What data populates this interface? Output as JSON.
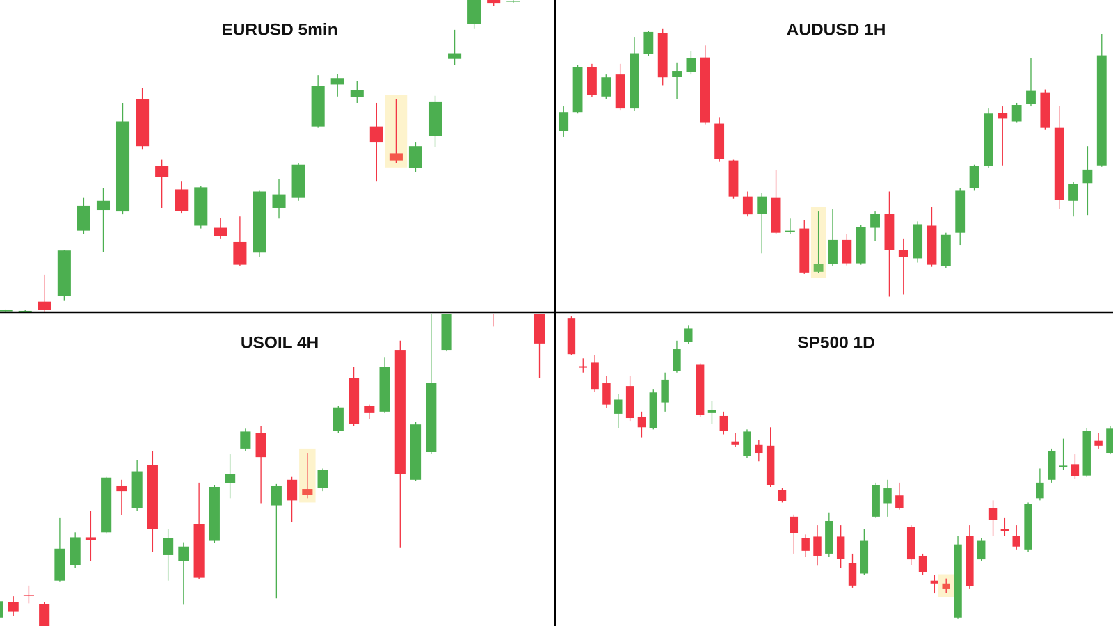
{
  "chart_data": [
    {
      "type": "candlestick",
      "title": "EURUSD 5min",
      "ylim": [
        0,
        441
      ],
      "up_color": "#4caf50",
      "down_color": "#f23645",
      "highlight": 20,
      "highlight_color": "#f4574a",
      "highlight_background": "#fdf3cc",
      "open": [
        3,
        3,
        16,
        24,
        116,
        145,
        143,
        301,
        207,
        174,
        123,
        120,
        100,
        85,
        148,
        163,
        263,
        322,
        304,
        263,
        225,
        204,
        249,
        358,
        407,
        451,
        439
      ],
      "high": [
        5,
        4,
        54,
        89,
        163,
        176,
        296,
        317,
        216,
        186,
        179,
        134,
        136,
        173,
        189,
        211,
        335,
        337,
        327,
        296,
        301,
        241,
        306,
        399,
        450,
        461,
        442
      ],
      "low": [
        1,
        2,
        1,
        17,
        111,
        86,
        139,
        231,
        148,
        141,
        119,
        105,
        66,
        79,
        133,
        158,
        261,
        305,
        296,
        186,
        211,
        198,
        234,
        349,
        401,
        433,
        437
      ],
      "close": [
        4,
        3,
        4,
        88,
        151,
        158,
        270,
        235,
        192,
        144,
        177,
        108,
        68,
        171,
        167,
        209,
        320,
        331,
        314,
        241,
        215,
        235,
        298,
        366,
        446,
        436,
        440
      ]
    },
    {
      "type": "candlestick",
      "title": "AUDUSD 1H",
      "ylim": [
        0,
        441
      ],
      "up_color": "#4caf50",
      "down_color": "#f23645",
      "highlight": 18,
      "highlight_color": "#6dbb5a",
      "highlight_background": "#fdf3cc",
      "open": [
        256,
        283,
        346,
        305,
        336,
        289,
        365,
        394,
        333,
        340,
        360,
        267,
        215,
        164,
        140,
        163,
        114,
        119,
        58,
        69,
        103,
        70,
        120,
        140,
        89,
        77,
        123,
        66,
        113,
        176,
        207,
        282,
        270,
        294,
        311,
        261,
        158,
        183,
        208
      ],
      "high": [
        291,
        349,
        351,
        336,
        351,
        389,
        397,
        401,
        353,
        369,
        377,
        276,
        216,
        171,
        169,
        201,
        133,
        131,
        143,
        146,
        111,
        124,
        143,
        171,
        105,
        129,
        149,
        113,
        176,
        209,
        289,
        291,
        296,
        359,
        315,
        291,
        185,
        235,
        393
      ],
      "low": [
        248,
        281,
        304,
        301,
        286,
        285,
        362,
        321,
        301,
        336,
        266,
        213,
        161,
        136,
        84,
        111,
        111,
        55,
        56,
        66,
        67,
        68,
        101,
        23,
        26,
        71,
        65,
        63,
        96,
        173,
        204,
        208,
        268,
        291,
        258,
        146,
        136,
        138,
        206
      ],
      "close": [
        283,
        346,
        307,
        332,
        289,
        366,
        396,
        332,
        341,
        359,
        268,
        217,
        164,
        139,
        164,
        113,
        116,
        57,
        69,
        103,
        70,
        121,
        140,
        89,
        79,
        125,
        68,
        110,
        173,
        207,
        281,
        274,
        293,
        313,
        261,
        159,
        182,
        202,
        363
      ]
    },
    {
      "type": "candlestick",
      "title": "USOIL 4H",
      "ylim": [
        0,
        441
      ],
      "up_color": "#4caf50",
      "down_color": "#f23645",
      "highlight": 20,
      "highlight_color": "#f4574a",
      "highlight_background": "#fdf3cc",
      "open": [
        12,
        34,
        44,
        31,
        64,
        86,
        125,
        132,
        197,
        166,
        227,
        100,
        92,
        144,
        120,
        201,
        250,
        272,
        170,
        206,
        193,
        195,
        275,
        349,
        310,
        302,
        389,
        206,
        245,
        389,
        null,
        null,
        452,
        null,
        null,
        452
      ],
      "high": [
        37,
        42,
        57,
        34,
        152,
        132,
        162,
        210,
        206,
        234,
        246,
        137,
        118,
        202,
        198,
        242,
        278,
        282,
        200,
        210,
        244,
        222,
        310,
        365,
        312,
        379,
        402,
        288,
        440,
        462,
        null,
        null,
        457,
        null,
        null,
        457
      ],
      "low": [
        0,
        14,
        32,
        -8,
        62,
        82,
        92,
        130,
        156,
        162,
        104,
        64,
        30,
        66,
        117,
        180,
        246,
        173,
        39,
        146,
        180,
        190,
        272,
        282,
        292,
        300,
        110,
        204,
        242,
        387,
        null,
        null,
        422,
        null,
        null,
        349
      ],
      "close": [
        35,
        20,
        43,
        -5,
        109,
        125,
        121,
        209,
        190,
        218,
        137,
        124,
        112,
        68,
        196,
        214,
        274,
        238,
        197,
        177,
        185,
        220,
        308,
        285,
        300,
        365,
        214,
        284,
        343,
        452,
        null,
        null,
        444,
        null,
        null,
        398
      ]
    },
    {
      "type": "candlestick",
      "title": "SP500 1D",
      "ylim": [
        0,
        441
      ],
      "up_color": "#4caf50",
      "down_color": "#f23645",
      "highlight": 32,
      "highlight_color": "#f4574a",
      "highlight_background": "#fdf3cc",
      "open": [
        434,
        366,
        371,
        342,
        299,
        338,
        295,
        279,
        315,
        359,
        400,
        368,
        300,
        296,
        260,
        240,
        255,
        254,
        192,
        154,
        124,
        126,
        102,
        126,
        89,
        74,
        154,
        173,
        184,
        140,
        99,
        64,
        60,
        12,
        127,
        94,
        166,
        137,
        127,
        107,
        180,
        206,
        224,
        228,
        212,
        261,
        244
      ],
      "high": [
        436,
        377,
        382,
        352,
        327,
        352,
        302,
        334,
        357,
        402,
        424,
        370,
        317,
        302,
        272,
        277,
        262,
        280,
        194,
        157,
        129,
        142,
        160,
        142,
        102,
        137,
        202,
        206,
        202,
        142,
        102,
        72,
        67,
        127,
        142,
        124,
        177,
        152,
        142,
        174,
        222,
        250,
        264,
        242,
        279,
        272,
        282
      ],
      "low": [
        382,
        357,
        330,
        307,
        279,
        289,
        266,
        277,
        302,
        357,
        397,
        294,
        285,
        270,
        252,
        237,
        232,
        196,
        174,
        102,
        97,
        85,
        97,
        82,
        54,
        72,
        152,
        154,
        164,
        86,
        72,
        46,
        47,
        10,
        52,
        92,
        127,
        127,
        107,
        104,
        177,
        202,
        220,
        207,
        210,
        250,
        242
      ],
      "close": [
        383,
        364,
        334,
        312,
        319,
        293,
        280,
        329,
        347,
        390,
        419,
        297,
        304,
        275,
        255,
        274,
        244,
        198,
        176,
        131,
        106,
        99,
        148,
        95,
        57,
        120,
        198,
        194,
        166,
        94,
        76,
        60,
        52,
        115,
        56,
        120,
        149,
        134,
        112,
        172,
        202,
        246,
        226,
        211,
        275,
        254,
        278
      ]
    }
  ]
}
